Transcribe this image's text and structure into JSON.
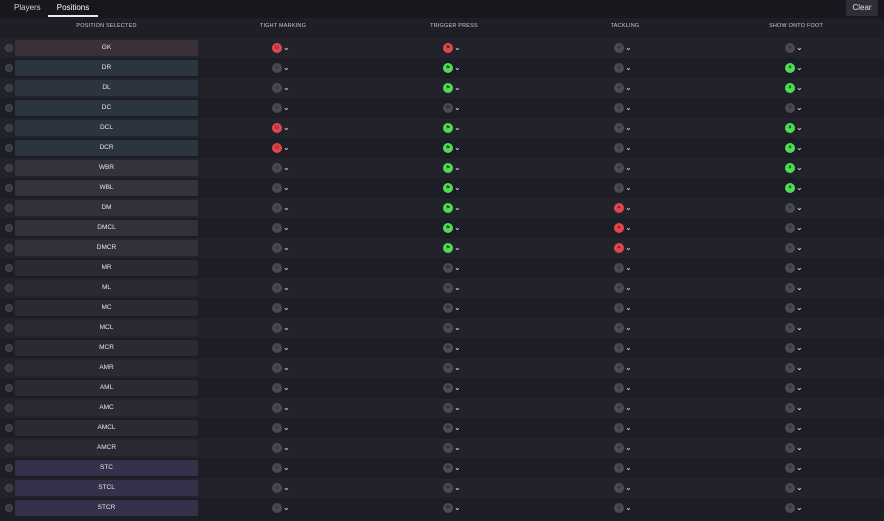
{
  "tabs": {
    "players": "Players",
    "positions": "Positions"
  },
  "clear_label": "Clear",
  "headers": {
    "position": "POSITION SELECTED",
    "tight_marking": "TIGHT MARKING",
    "trigger_press": "TRIGGER PRESS",
    "tackling": "TACKLING",
    "show_onto_foot": "SHOW ONTO FOOT"
  },
  "colors": {
    "red": "#e0484e",
    "green": "#4ede56",
    "grey": "#4a4a52"
  },
  "rows": [
    {
      "pos": "GK",
      "bg": "#3a3038",
      "tm": "red",
      "tp": "red",
      "tk": "grey",
      "sf": "grey"
    },
    {
      "pos": "DR",
      "bg": "#2c3440",
      "tm": "grey",
      "tp": "green",
      "tk": "grey",
      "sf": "green"
    },
    {
      "pos": "DL",
      "bg": "#2c3440",
      "tm": "grey",
      "tp": "green",
      "tk": "grey",
      "sf": "green"
    },
    {
      "pos": "DC",
      "bg": "#2c3440",
      "tm": "grey",
      "tp": "grey",
      "tk": "grey",
      "sf": "grey"
    },
    {
      "pos": "DCL",
      "bg": "#2c3440",
      "tm": "red",
      "tp": "green",
      "tk": "grey",
      "sf": "green"
    },
    {
      "pos": "DCR",
      "bg": "#2c3440",
      "tm": "red",
      "tp": "green",
      "tk": "grey",
      "sf": "green"
    },
    {
      "pos": "WBR",
      "bg": "#33333b",
      "tm": "grey",
      "tp": "green",
      "tk": "grey",
      "sf": "green"
    },
    {
      "pos": "WBL",
      "bg": "#33333b",
      "tm": "grey",
      "tp": "green",
      "tk": "grey",
      "sf": "green"
    },
    {
      "pos": "DM",
      "bg": "#31313a",
      "tm": "grey",
      "tp": "green",
      "tk": "red",
      "sf": "grey"
    },
    {
      "pos": "DMCL",
      "bg": "#31313a",
      "tm": "grey",
      "tp": "green",
      "tk": "red",
      "sf": "grey"
    },
    {
      "pos": "DMCR",
      "bg": "#31313a",
      "tm": "grey",
      "tp": "green",
      "tk": "red",
      "sf": "grey"
    },
    {
      "pos": "MR",
      "bg": "#2a2a32",
      "tm": "grey",
      "tp": "grey",
      "tk": "grey",
      "sf": "grey"
    },
    {
      "pos": "ML",
      "bg": "#2a2a32",
      "tm": "grey",
      "tp": "grey",
      "tk": "grey",
      "sf": "grey"
    },
    {
      "pos": "MC",
      "bg": "#2a2a32",
      "tm": "grey",
      "tp": "grey",
      "tk": "grey",
      "sf": "grey"
    },
    {
      "pos": "MCL",
      "bg": "#2a2a32",
      "tm": "grey",
      "tp": "grey",
      "tk": "grey",
      "sf": "grey"
    },
    {
      "pos": "MCR",
      "bg": "#2a2a32",
      "tm": "grey",
      "tp": "grey",
      "tk": "grey",
      "sf": "grey"
    },
    {
      "pos": "AMR",
      "bg": "#2a2a32",
      "tm": "grey",
      "tp": "grey",
      "tk": "grey",
      "sf": "grey"
    },
    {
      "pos": "AML",
      "bg": "#2a2a32",
      "tm": "grey",
      "tp": "grey",
      "tk": "grey",
      "sf": "grey"
    },
    {
      "pos": "AMC",
      "bg": "#2a2a32",
      "tm": "grey",
      "tp": "grey",
      "tk": "grey",
      "sf": "grey"
    },
    {
      "pos": "AMCL",
      "bg": "#2a2a32",
      "tm": "grey",
      "tp": "grey",
      "tk": "grey",
      "sf": "grey"
    },
    {
      "pos": "AMCR",
      "bg": "#2a2a32",
      "tm": "grey",
      "tp": "grey",
      "tk": "grey",
      "sf": "grey"
    },
    {
      "pos": "STC",
      "bg": "#34324a",
      "tm": "grey",
      "tp": "grey",
      "tk": "grey",
      "sf": "grey"
    },
    {
      "pos": "STCL",
      "bg": "#34324a",
      "tm": "grey",
      "tp": "grey",
      "tk": "grey",
      "sf": "grey"
    },
    {
      "pos": "STCR",
      "bg": "#34324a",
      "tm": "grey",
      "tp": "grey",
      "tk": "grey",
      "sf": "grey"
    }
  ]
}
